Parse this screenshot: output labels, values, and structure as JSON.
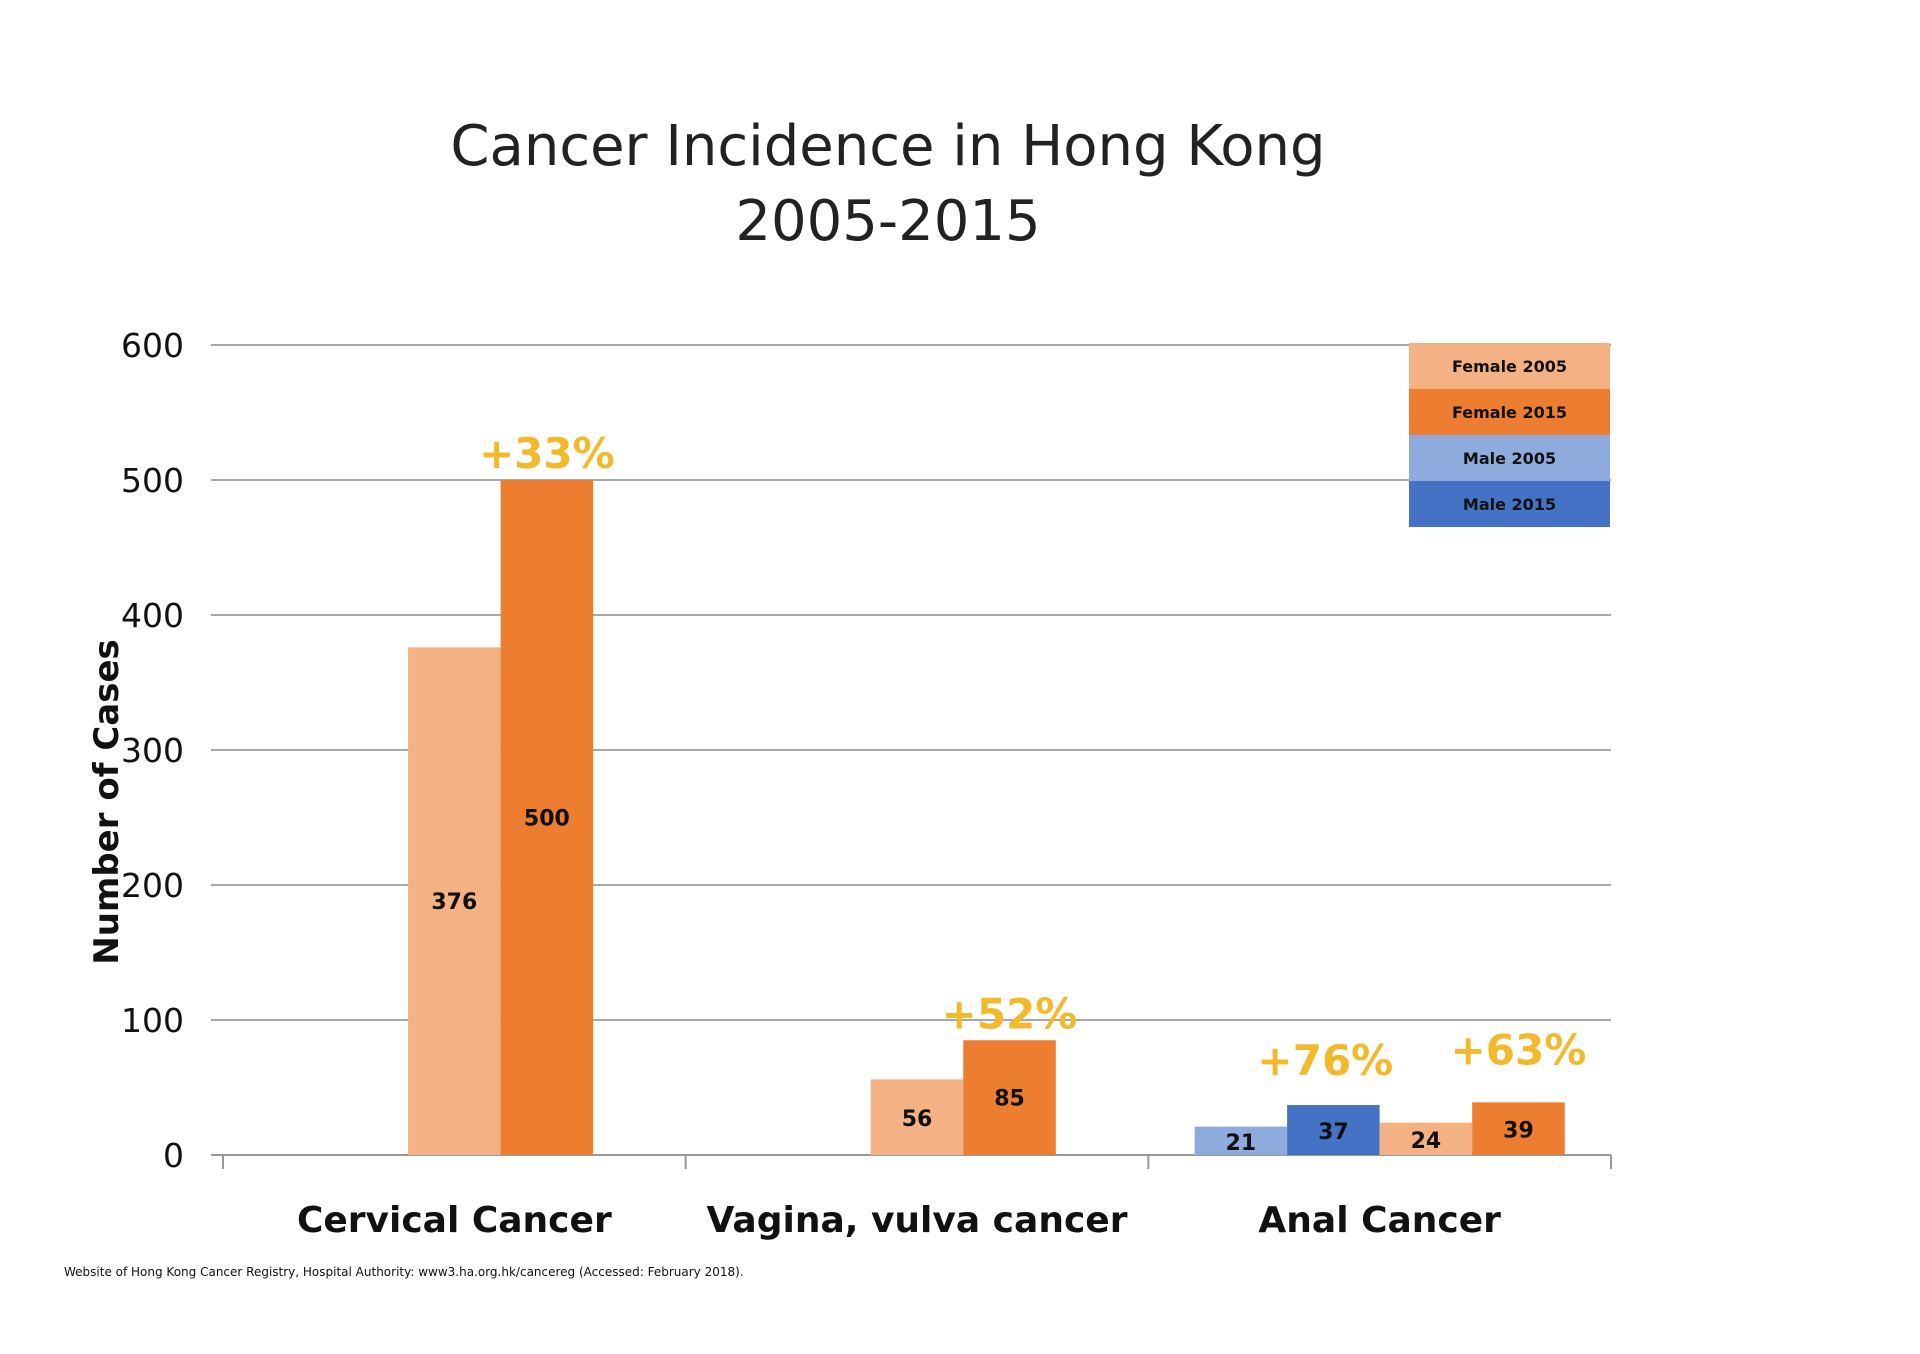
{
  "chart_data": {
    "type": "bar",
    "title": [
      "Cancer Incidence in Hong Kong",
      "2005-2015"
    ],
    "xlabel": "",
    "ylabel": "Number of Cases",
    "ylim": [
      0,
      600
    ],
    "yticks": [
      0,
      100,
      200,
      300,
      400,
      500,
      600
    ],
    "grid": true,
    "legend_placement": "top-right",
    "categories": [
      "Cervical Cancer",
      "Vagina, vulva cancer",
      "Anal Cancer"
    ],
    "series": [
      {
        "name": "Female 2005",
        "color": "#F4B183",
        "values": [
          376,
          56,
          24
        ]
      },
      {
        "name": "Female 2015",
        "color": "#ED7D31",
        "values": [
          500,
          85,
          39
        ]
      },
      {
        "name": "Male 2005",
        "color": "#8FAADC",
        "values": [
          null,
          null,
          21
        ]
      },
      {
        "name": "Male 2015",
        "color": "#4472C4",
        "values": [
          null,
          null,
          37
        ]
      }
    ],
    "annotations": [
      {
        "text": "+33%",
        "category": "Cervical Cancer",
        "series": "Female 2015"
      },
      {
        "text": "+52%",
        "category": "Vagina, vulva cancer",
        "series": "Female 2015"
      },
      {
        "text": "+76%",
        "category": "Anal Cancer",
        "series": "Male 2015"
      },
      {
        "text": "+63%",
        "category": "Anal Cancer",
        "series": "Female 2015"
      }
    ],
    "annotation_color": "#F2B92B",
    "footnote": "Website of Hong Kong Cancer Registry, Hospital Authority: www3.ha.org.hk/cancereg (Accessed: February 2018)."
  }
}
